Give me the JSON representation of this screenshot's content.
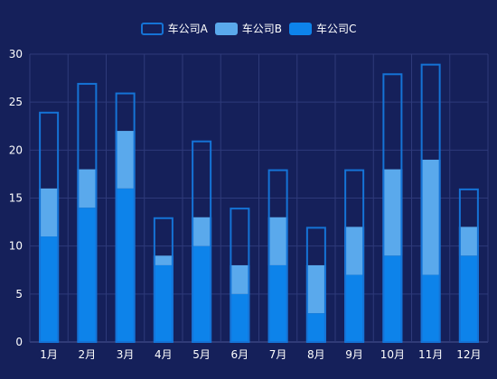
{
  "colors": {
    "background": "#15205a",
    "gridline": "#2e3a7a",
    "axis_text": "#ffffff",
    "series_a_stroke": "#1573d6",
    "series_b_fill": "#5aa9ec",
    "series_c_fill": "#0d83ea"
  },
  "chart_data": {
    "type": "bar",
    "stacked": true,
    "categories": [
      "1月",
      "2月",
      "3月",
      "4月",
      "5月",
      "6月",
      "7月",
      "8月",
      "9月",
      "10月",
      "11月",
      "12月"
    ],
    "series": [
      {
        "name": "车公司A",
        "values": [
          8,
          9,
          4,
          4,
          8,
          6,
          5,
          4,
          6,
          10,
          10,
          4
        ],
        "style": "outline"
      },
      {
        "name": "车公司B",
        "values": [
          5,
          4,
          6,
          1,
          3,
          3,
          5,
          5,
          5,
          9,
          12,
          3
        ],
        "style": "fill"
      },
      {
        "name": "车公司C",
        "values": [
          11,
          14,
          16,
          8,
          10,
          5,
          8,
          3,
          7,
          9,
          7,
          9
        ],
        "style": "fill"
      }
    ],
    "stack_order_bottom_to_top": [
      "车公司C",
      "车公司B",
      "车公司A"
    ],
    "ylim": [
      0,
      30
    ],
    "yticks": [
      0,
      5,
      10,
      15,
      20,
      25,
      30
    ],
    "grid": true,
    "legend_position": "top-center",
    "title": "",
    "xlabel": "",
    "ylabel": ""
  }
}
